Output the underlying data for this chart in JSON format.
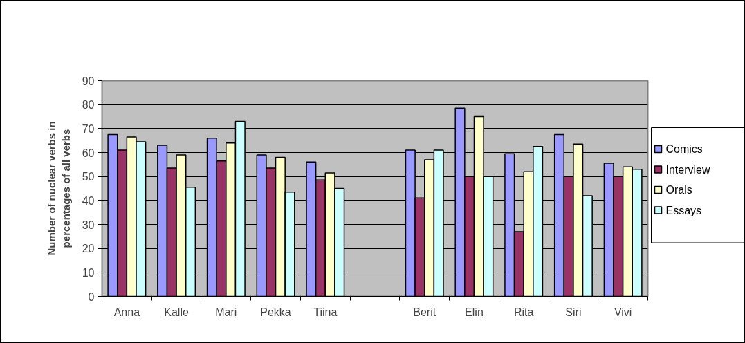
{
  "chart_data": {
    "type": "bar",
    "ylabel": "Number of nuclear verbs in percentages of all verbs",
    "categories": [
      "Anna",
      "Kalle",
      "Mari",
      "Pekka",
      "Tiina",
      null,
      "Berit",
      "Elin",
      "Rita",
      "Siri",
      "Vivi"
    ],
    "series": [
      {
        "name": "Comics",
        "color": "#9999ff",
        "values": [
          67.5,
          63,
          66,
          59,
          56,
          null,
          61,
          78.5,
          59.5,
          67.5,
          55.5
        ]
      },
      {
        "name": "Interview",
        "color": "#993366",
        "values": [
          61,
          53.5,
          56.5,
          53.5,
          48.5,
          null,
          41,
          50,
          27,
          50,
          50
        ]
      },
      {
        "name": "Orals",
        "color": "#ffffcc",
        "values": [
          66.5,
          59,
          64,
          58,
          51.5,
          null,
          57,
          75,
          52,
          63.5,
          54
        ]
      },
      {
        "name": "Essays",
        "color": "#ccffff",
        "values": [
          64.5,
          45.5,
          73,
          43.5,
          45,
          null,
          61,
          50,
          62.5,
          42,
          53
        ]
      }
    ],
    "ylim": [
      0,
      90
    ],
    "yticks": [
      0,
      10,
      20,
      30,
      40,
      50,
      60,
      70,
      80,
      90
    ],
    "grid": "y",
    "legend": "right"
  }
}
